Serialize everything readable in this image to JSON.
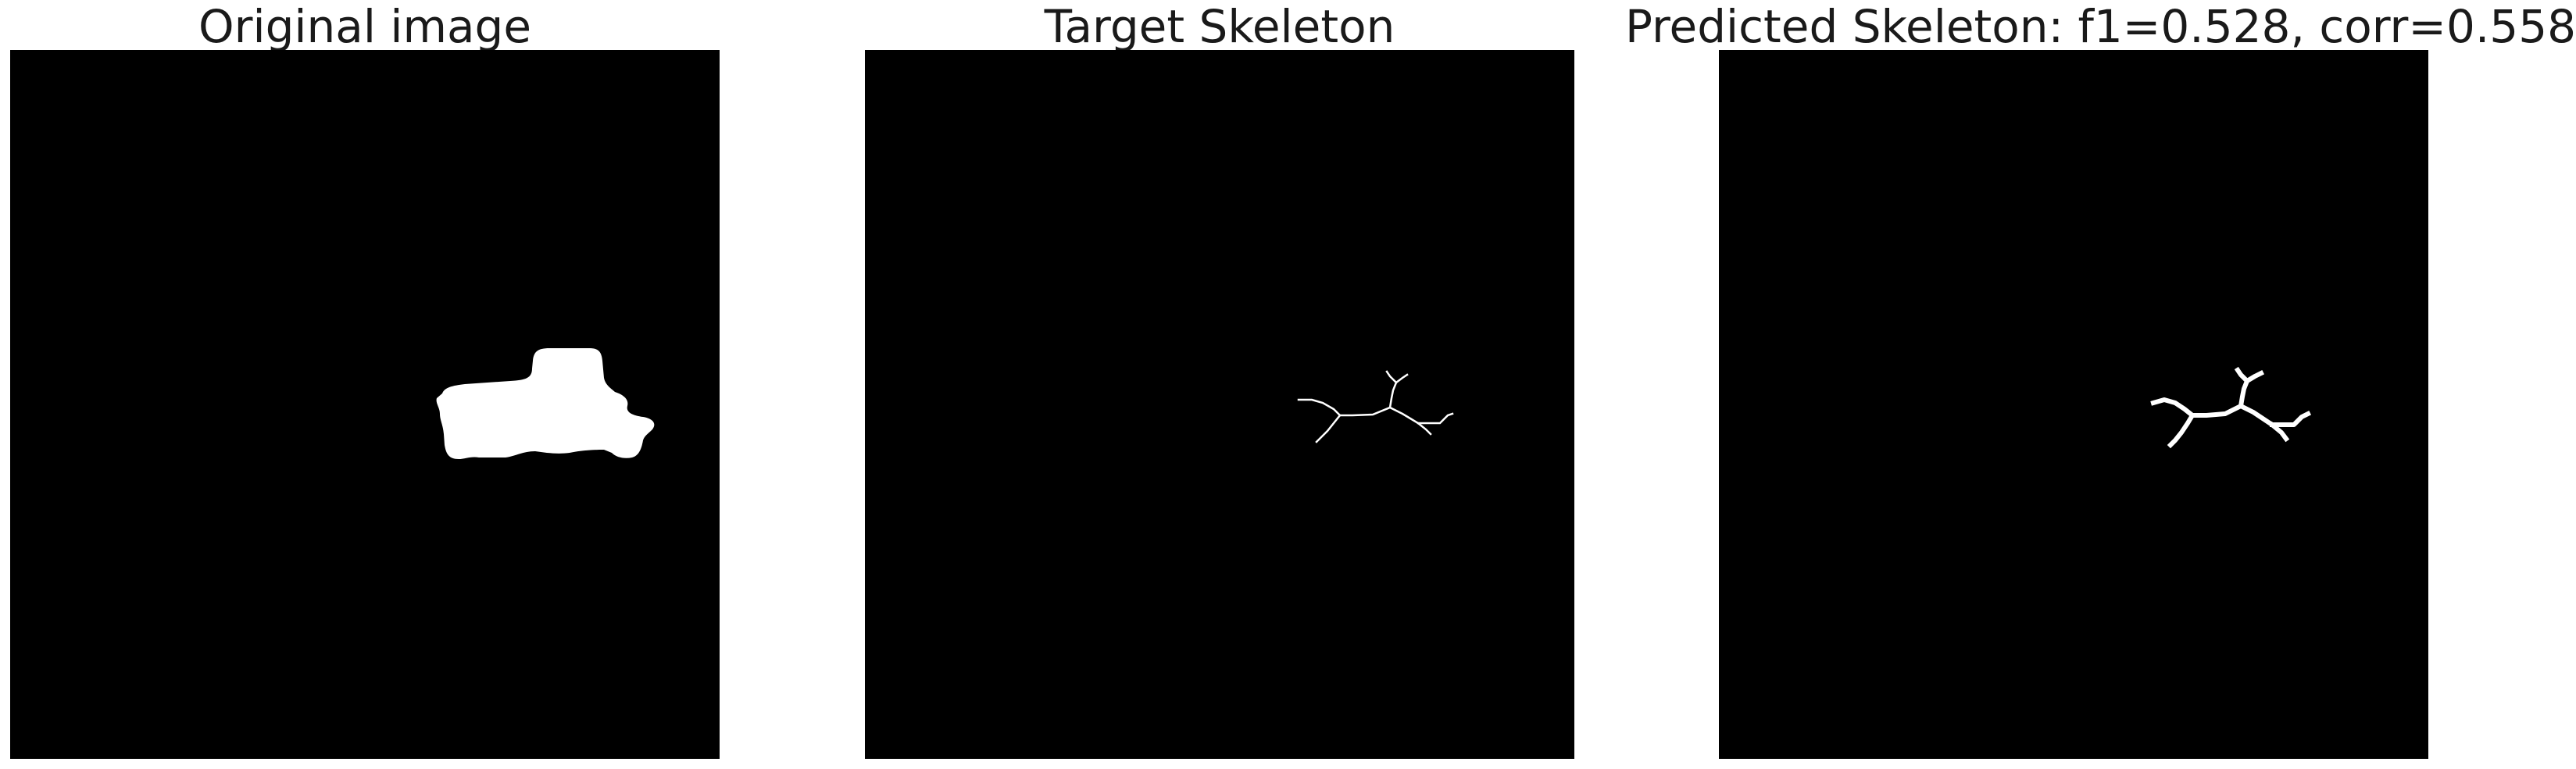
{
  "figure": {
    "panels": [
      {
        "title": "Original image",
        "image_kind": "binary-mask",
        "background_color": "#000000",
        "foreground_color": "#ffffff"
      },
      {
        "title": "Target Skeleton",
        "image_kind": "skeleton",
        "background_color": "#000000",
        "foreground_color": "#ffffff"
      },
      {
        "title": "Predicted Skeleton: f1=0.528, corr=0.558",
        "image_kind": "skeleton",
        "background_color": "#000000",
        "foreground_color": "#ffffff"
      }
    ]
  }
}
